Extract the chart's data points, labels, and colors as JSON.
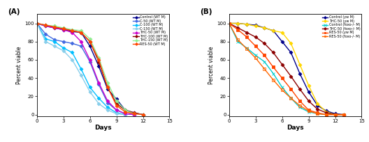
{
  "panel_A": {
    "title": "(A)",
    "xlabel": "Days",
    "ylabel": "Percent viable",
    "xticks": [
      0,
      3,
      6,
      9,
      12,
      15
    ],
    "yticks": [
      0,
      20,
      40,
      60,
      80,
      100
    ],
    "ylim": [
      -2,
      110
    ],
    "xlim": [
      0,
      15
    ],
    "series": [
      {
        "label": "Control (WT M)",
        "color": "#00008B",
        "marker": "D",
        "markersize": 2.5,
        "linewidth": 1.0,
        "fillstyle": "full",
        "x": [
          0,
          1,
          2,
          3,
          4,
          5,
          6,
          7,
          8,
          9,
          10,
          11,
          12
        ],
        "y": [
          100,
          97,
          95,
          93,
          91,
          90,
          75,
          53,
          28,
          17,
          5,
          2,
          0
        ]
      },
      {
        "label": "C-50 (WT M)",
        "color": "#4169E1",
        "marker": "D",
        "markersize": 2.5,
        "linewidth": 1.0,
        "fillstyle": "full",
        "x": [
          0,
          1,
          2,
          3,
          4,
          5,
          6,
          7,
          8,
          9,
          10,
          11
        ],
        "y": [
          100,
          88,
          82,
          80,
          78,
          75,
          58,
          33,
          13,
          5,
          1,
          0
        ]
      },
      {
        "label": "C-100 (WT M)",
        "color": "#00BFFF",
        "marker": "D",
        "markersize": 2.5,
        "linewidth": 1.0,
        "fillstyle": "full",
        "x": [
          0,
          1,
          2,
          3,
          4,
          5,
          6,
          7,
          8,
          9,
          10
        ],
        "y": [
          100,
          83,
          80,
          73,
          68,
          50,
          30,
          18,
          8,
          2,
          0
        ]
      },
      {
        "label": "C-150 (WT M)",
        "color": "#87CEEB",
        "marker": "D",
        "markersize": 2.5,
        "linewidth": 1.0,
        "fillstyle": "full",
        "x": [
          0,
          1,
          2,
          3,
          4,
          5,
          6,
          7,
          8,
          9,
          10
        ],
        "y": [
          100,
          80,
          75,
          70,
          60,
          43,
          25,
          12,
          5,
          1,
          0
        ]
      },
      {
        "label": "THC-50 (WT M)",
        "color": "#CC00CC",
        "marker": "D",
        "markersize": 2.5,
        "linewidth": 1.0,
        "fillstyle": "full",
        "x": [
          0,
          1,
          2,
          3,
          4,
          5,
          6,
          7,
          8,
          9,
          10,
          11
        ],
        "y": [
          100,
          97,
          95,
          93,
          90,
          80,
          60,
          35,
          15,
          5,
          1,
          0
        ]
      },
      {
        "label": "THC-100 (WT M)",
        "color": "#8B0000",
        "marker": "D",
        "markersize": 2.5,
        "linewidth": 1.0,
        "fillstyle": "full",
        "x": [
          0,
          1,
          2,
          3,
          4,
          5,
          6,
          7,
          8,
          9,
          10,
          11,
          12
        ],
        "y": [
          100,
          98,
          96,
          94,
          92,
          90,
          80,
          58,
          30,
          12,
          5,
          2,
          0
        ]
      },
      {
        "label": "THC-150 (WT M)",
        "color": "#90EE90",
        "marker": "D",
        "markersize": 2.5,
        "linewidth": 1.0,
        "fillstyle": "full",
        "x": [
          0,
          1,
          2,
          3,
          4,
          5,
          6,
          7,
          8,
          9,
          10,
          11,
          12
        ],
        "y": [
          100,
          98,
          97,
          95,
          93,
          92,
          83,
          62,
          35,
          15,
          5,
          1,
          0
        ]
      },
      {
        "label": "RES-50 (WT M)",
        "color": "#FF4500",
        "marker": "D",
        "markersize": 2.5,
        "linewidth": 1.0,
        "fillstyle": "full",
        "x": [
          0,
          1,
          2,
          3,
          4,
          5,
          6,
          7,
          8,
          9,
          10,
          11,
          12
        ],
        "y": [
          100,
          98,
          96,
          94,
          92,
          90,
          80,
          60,
          30,
          10,
          3,
          1,
          0
        ]
      }
    ]
  },
  "panel_B": {
    "title": "(B)",
    "xlabel": "Days",
    "ylabel": "Percent viable",
    "xticks": [
      0,
      3,
      6,
      9,
      12,
      15
    ],
    "yticks": [
      0,
      20,
      40,
      60,
      80,
      100
    ],
    "ylim": [
      -2,
      110
    ],
    "xlim": [
      0,
      15
    ],
    "series": [
      {
        "label": "Control (yw M)",
        "color": "#00008B",
        "marker": "D",
        "markersize": 2.5,
        "linewidth": 1.0,
        "fillstyle": "full",
        "linestyle": "-",
        "x": [
          0,
          1,
          2,
          3,
          4,
          5,
          6,
          7,
          8,
          9,
          10,
          11,
          12,
          13
        ],
        "y": [
          100,
          100,
          99,
          98,
          95,
          92,
          80,
          68,
          45,
          25,
          10,
          4,
          1,
          0
        ]
      },
      {
        "label": "THC-50 (yw M)",
        "color": "#FFD700",
        "marker": "D",
        "markersize": 2.5,
        "linewidth": 1.0,
        "fillstyle": "full",
        "linestyle": "-",
        "x": [
          0,
          1,
          2,
          3,
          4,
          5,
          6,
          7,
          8,
          9,
          10,
          11,
          12,
          13
        ],
        "y": [
          100,
          100,
          99,
          97,
          95,
          92,
          90,
          78,
          55,
          32,
          12,
          3,
          0,
          0
        ]
      },
      {
        "label": "Control (foxo-/- M)",
        "color": "#00CCCC",
        "marker": "x",
        "markersize": 3.5,
        "linewidth": 1.0,
        "fillstyle": "full",
        "linestyle": "-",
        "x": [
          0,
          1,
          2,
          3,
          4,
          5,
          6,
          7,
          8,
          9,
          10,
          11
        ],
        "y": [
          100,
          80,
          73,
          65,
          58,
          45,
          30,
          18,
          8,
          3,
          1,
          0
        ]
      },
      {
        "label": "THC-50 (foxo-/- M)",
        "color": "#8B0000",
        "marker": "D",
        "markersize": 2.5,
        "linewidth": 1.0,
        "fillstyle": "full",
        "linestyle": "-",
        "x": [
          0,
          1,
          2,
          3,
          4,
          5,
          6,
          7,
          8,
          9,
          10,
          11,
          12,
          13
        ],
        "y": [
          100,
          95,
          90,
          85,
          78,
          68,
          55,
          42,
          28,
          15,
          6,
          2,
          0,
          0
        ]
      },
      {
        "label": "RES-50 (yw M)",
        "color": "#FF4500",
        "marker": "s",
        "markersize": 2.5,
        "fillstyle": "full",
        "linewidth": 1.0,
        "linestyle": "-",
        "x": [
          0,
          1,
          2,
          3,
          4,
          5,
          6,
          7,
          8,
          9,
          10,
          11,
          12,
          13
        ],
        "y": [
          100,
          93,
          85,
          75,
          65,
          52,
          40,
          28,
          15,
          5,
          2,
          0,
          0,
          0
        ]
      },
      {
        "label": "RES-50 (foxo-/- M)",
        "color": "#FF6600",
        "marker": "s",
        "markersize": 2.5,
        "fillstyle": "none",
        "linewidth": 1.0,
        "linestyle": "-",
        "x": [
          0,
          1,
          2,
          3,
          4,
          5,
          6,
          7,
          8,
          9,
          10,
          11,
          12,
          13
        ],
        "y": [
          100,
          82,
          72,
          62,
          50,
          38,
          27,
          18,
          10,
          4,
          1,
          0,
          0,
          0
        ]
      }
    ]
  }
}
